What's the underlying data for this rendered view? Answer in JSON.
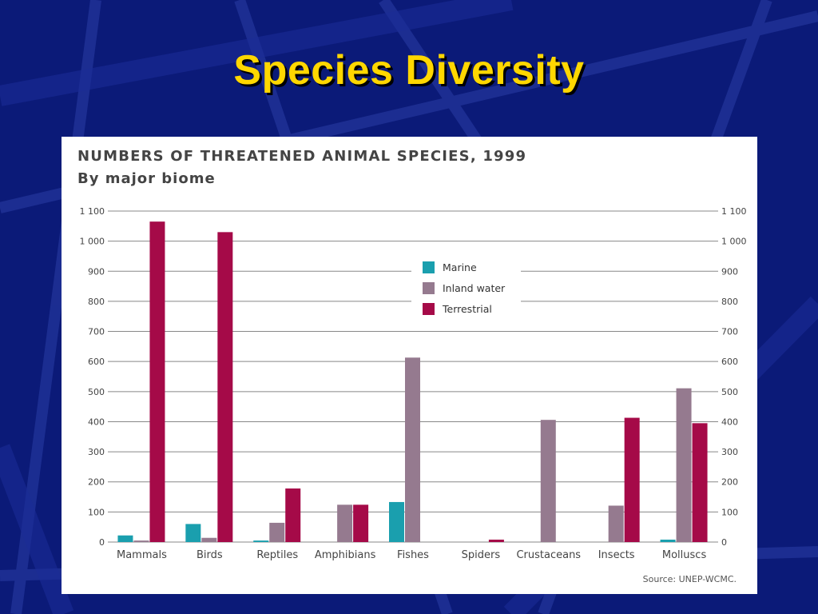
{
  "slide": {
    "title": "Species Diversity",
    "background_color": "#0b1a78",
    "title_color": "#ffd700"
  },
  "chart_data": {
    "type": "bar",
    "title": "NUMBERS OF THREATENED ANIMAL SPECIES, 1999",
    "subtitle": "By major biome",
    "source": "Source: UNEP-WCMC.",
    "categories": [
      "Mammals",
      "Birds",
      "Reptiles",
      "Amphibians",
      "Fishes",
      "Spiders",
      "Crustaceans",
      "Insects",
      "Molluscs"
    ],
    "series": [
      {
        "name": "Marine",
        "color": "#1a9fae",
        "values": [
          22,
          60,
          5,
          0,
          133,
          0,
          0,
          0,
          8
        ]
      },
      {
        "name": "Inland water",
        "color": "#957a8f",
        "values": [
          5,
          14,
          64,
          124,
          613,
          0,
          406,
          121,
          511
        ]
      },
      {
        "name": "Terrestrial",
        "color": "#a50a48",
        "values": [
          1065,
          1030,
          178,
          124,
          0,
          8,
          0,
          413,
          395
        ]
      }
    ],
    "ylim": [
      0,
      1100
    ],
    "yticks": [
      0,
      100,
      200,
      300,
      400,
      500,
      600,
      700,
      800,
      900,
      1000,
      1100
    ],
    "ytick_labels": [
      "0",
      "100",
      "200",
      "300",
      "400",
      "500",
      "600",
      "700",
      "800",
      "900",
      "1 000",
      "1 100"
    ],
    "grid": true,
    "legend_position": "top-right",
    "xlabel": "",
    "ylabel": ""
  }
}
